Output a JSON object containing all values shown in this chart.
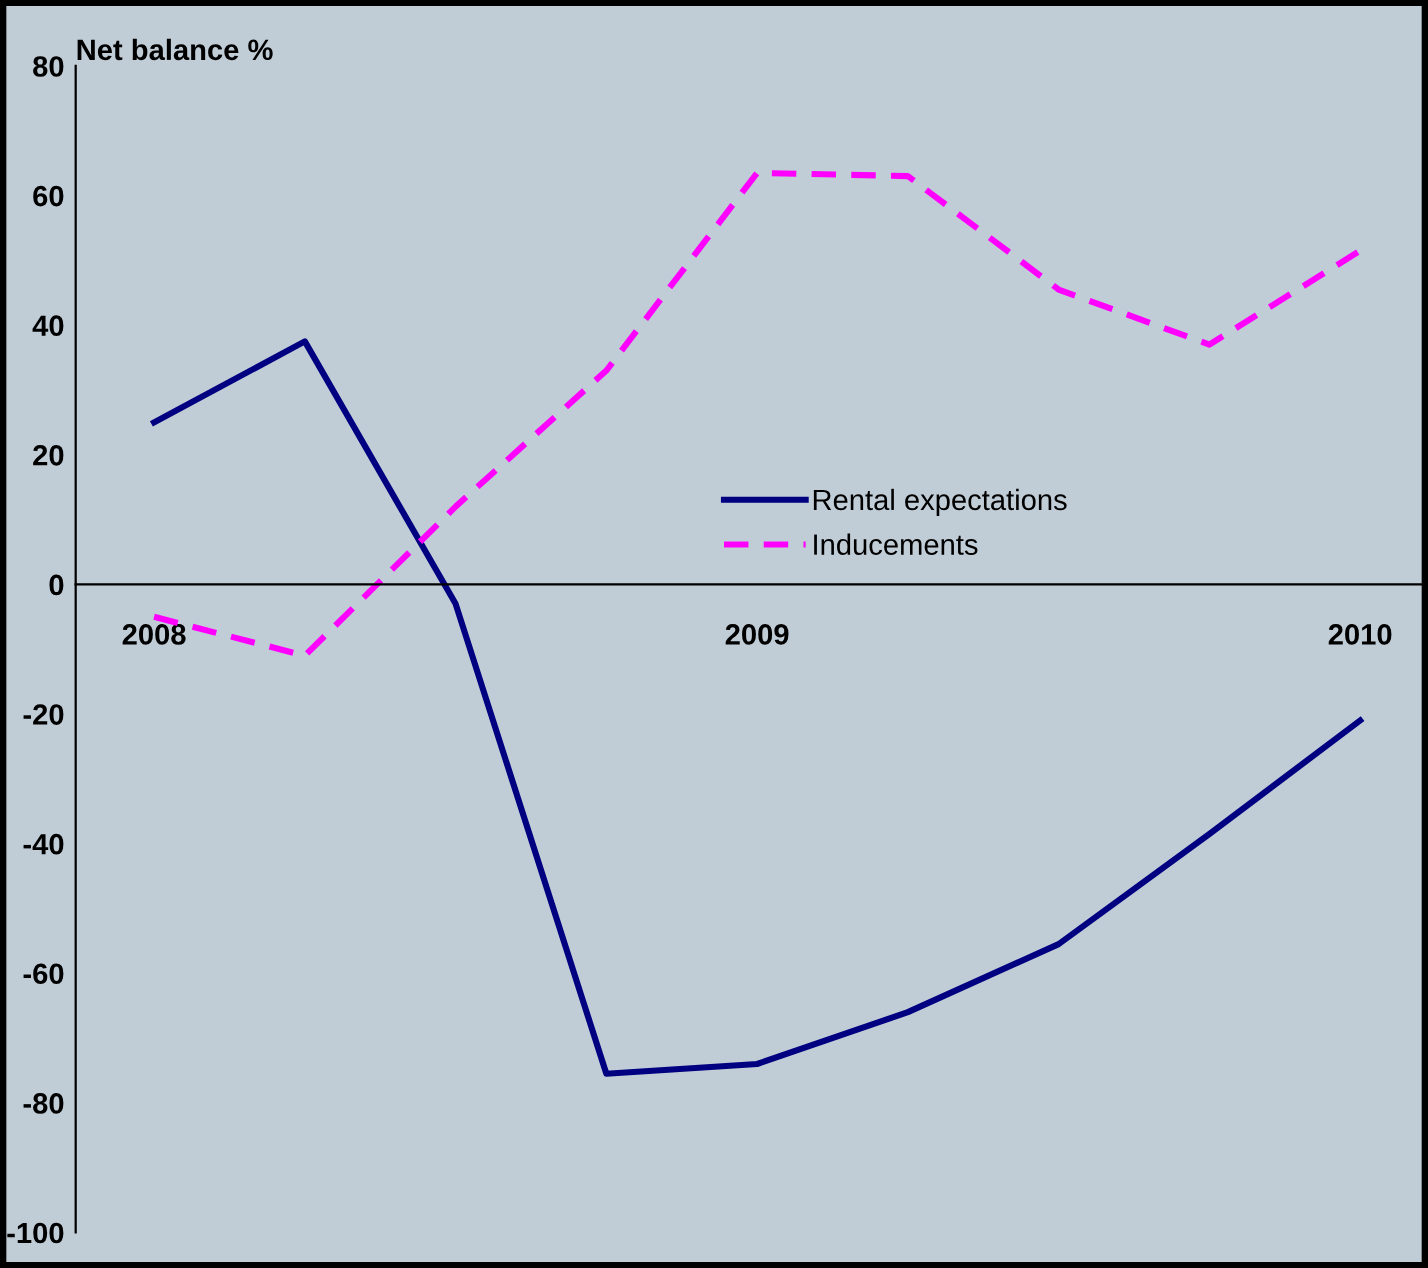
{
  "chart_data": {
    "type": "line",
    "ylabel": "Net balance %",
    "categories": [
      "2008",
      null,
      null,
      null,
      "2009",
      null,
      null,
      null,
      "2010"
    ],
    "series": [
      {
        "name": "Rental expectations",
        "color": "#000080",
        "line_style": "solid",
        "values": [
          25,
          37.5,
          -3,
          -75.5,
          -74,
          -66,
          -55.5,
          -38.5,
          -21
        ]
      },
      {
        "name": "Inducements",
        "color": "#ff00ff",
        "line_style": "dashed",
        "values": [
          -5,
          -11,
          12,
          33,
          63.5,
          63,
          45.5,
          37,
          51.5
        ]
      }
    ],
    "ylim": [
      -100,
      80
    ],
    "yticks": [
      -100,
      -80,
      -60,
      -40,
      -20,
      0,
      20,
      40,
      60,
      80
    ],
    "grid": false,
    "legend": "center",
    "marker": "none"
  }
}
